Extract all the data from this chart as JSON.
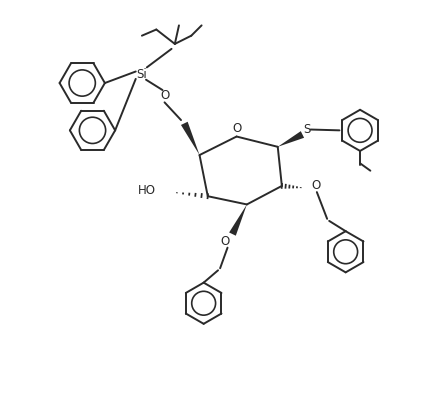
{
  "bg_color": "#ffffff",
  "line_color": "#2a2a2a",
  "line_width": 1.4,
  "figsize": [
    4.32,
    4.13
  ],
  "dpi": 100,
  "xlim": [
    0,
    10
  ],
  "ylim": [
    0,
    10
  ]
}
